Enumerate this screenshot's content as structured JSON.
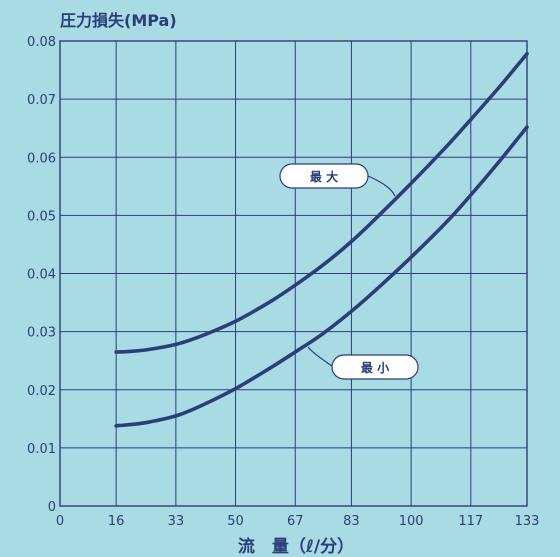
{
  "chart_data": {
    "type": "line",
    "ylabel": "圧力損失(MPa)",
    "xlabel": "流　量（ℓ/分）",
    "x_ticks": [
      "0",
      "16",
      "33",
      "50",
      "67",
      "83",
      "100",
      "117",
      "133"
    ],
    "y_ticks": [
      "0",
      "0.01",
      "0.02",
      "0.03",
      "0.04",
      "0.05",
      "0.06",
      "0.07",
      "0.08"
    ],
    "xlim": [
      0,
      133
    ],
    "ylim": [
      0,
      0.08
    ],
    "grid": true,
    "series": [
      {
        "name": "最 大",
        "x": [
          16,
          20,
          25,
          33,
          40,
          50,
          60,
          67,
          75,
          83,
          90,
          100,
          110,
          117,
          125,
          133
        ],
        "y": [
          0.0265,
          0.0266,
          0.0269,
          0.0278,
          0.0292,
          0.0318,
          0.0352,
          0.038,
          0.0415,
          0.0455,
          0.0495,
          0.0555,
          0.0618,
          0.0665,
          0.072,
          0.0778
        ]
      },
      {
        "name": "最 小",
        "x": [
          16,
          20,
          25,
          33,
          40,
          50,
          60,
          67,
          75,
          83,
          90,
          100,
          110,
          117,
          125,
          133
        ],
        "y": [
          0.0138,
          0.014,
          0.0144,
          0.0155,
          0.0172,
          0.0202,
          0.0238,
          0.0265,
          0.0297,
          0.0335,
          0.0372,
          0.0428,
          0.0488,
          0.0535,
          0.0592,
          0.0652
        ]
      }
    ]
  }
}
